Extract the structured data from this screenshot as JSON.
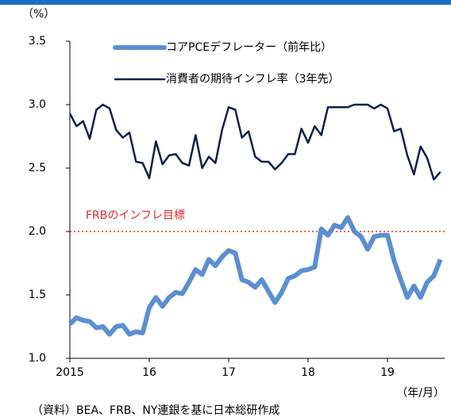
{
  "chart_data": {
    "type": "line",
    "unit_label": "（%）",
    "x_label": "（年/月）",
    "source": "（資料）BEA、FRB、NY連銀を基に日本総研作成",
    "annotation": "FRBのインフレ目標",
    "target": 2,
    "target_color": "#e8262b",
    "categories": [
      "2015",
      null,
      null,
      null,
      null,
      null,
      null,
      null,
      null,
      null,
      null,
      null,
      "16",
      null,
      null,
      null,
      null,
      null,
      null,
      null,
      null,
      null,
      null,
      null,
      "17",
      null,
      null,
      null,
      null,
      null,
      null,
      null,
      null,
      null,
      null,
      null,
      "18",
      null,
      null,
      null,
      null,
      null,
      null,
      null,
      null,
      null,
      null,
      null,
      "19",
      null,
      null,
      null,
      null,
      null,
      null,
      null,
      null
    ],
    "series": [
      {
        "name": "コアPCEデフレーター（前年比）",
        "color": "#5b8fd1",
        "values": [
          1.27,
          1.32,
          1.3,
          1.29,
          1.24,
          1.25,
          1.19,
          1.25,
          1.26,
          1.19,
          1.21,
          1.2,
          1.4,
          1.48,
          1.41,
          1.48,
          1.52,
          1.51,
          1.6,
          1.7,
          1.66,
          1.78,
          1.73,
          1.8,
          1.85,
          1.83,
          1.62,
          1.6,
          1.56,
          1.62,
          1.53,
          1.44,
          1.52,
          1.63,
          1.65,
          1.69,
          1.7,
          1.72,
          2.02,
          1.97,
          2.05,
          2.03,
          2.11,
          2.0,
          1.96,
          1.86,
          1.96,
          1.97,
          1.97,
          1.77,
          1.62,
          1.48,
          1.57,
          1.48,
          1.6,
          1.65,
          1.78
        ]
      },
      {
        "name": "消費者の期待インフレ率（3年先）",
        "color": "#0d1f4f",
        "values": [
          2.93,
          2.83,
          2.87,
          2.73,
          2.96,
          3.0,
          2.97,
          2.8,
          2.74,
          2.78,
          2.55,
          2.54,
          2.42,
          2.71,
          2.53,
          2.6,
          2.61,
          2.54,
          2.52,
          2.76,
          2.5,
          2.59,
          2.54,
          2.8,
          2.98,
          2.96,
          2.74,
          2.79,
          2.59,
          2.55,
          2.55,
          2.49,
          2.54,
          2.61,
          2.61,
          2.81,
          2.7,
          2.83,
          2.76,
          2.98,
          2.98,
          2.98,
          2.98,
          3.0,
          3.0,
          3.0,
          2.97,
          3.0,
          2.97,
          2.79,
          2.81,
          2.6,
          2.45,
          2.67,
          2.58,
          2.41,
          2.47
        ]
      }
    ],
    "ylim": [
      1,
      3.5
    ],
    "yticks": [
      {
        "value": 1,
        "label": "1.0"
      },
      1.5,
      {
        "value": 2,
        "label": "2.0"
      },
      2.5,
      {
        "value": 3,
        "label": "3.0"
      },
      3.5
    ]
  }
}
